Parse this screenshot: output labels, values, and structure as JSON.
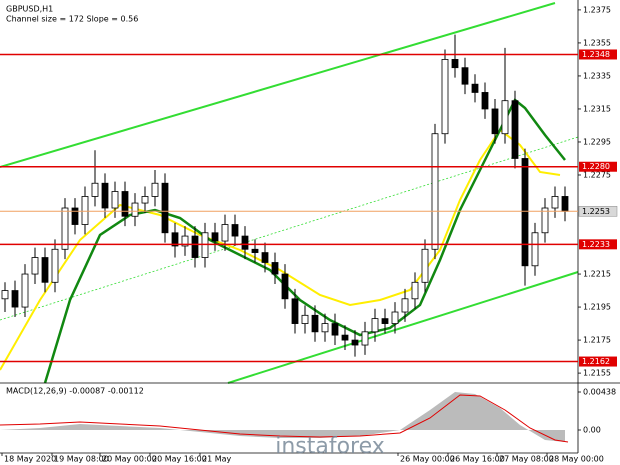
{
  "chart_data": {
    "type": "candlestick",
    "title": "GBPUSD,H1",
    "subtitle": "Channel size = 172 Slope = 0.56",
    "candles": [
      [
        1.22,
        1.221,
        1.2192,
        1.2205
      ],
      [
        1.2205,
        1.2211,
        1.2189,
        1.2195
      ],
      [
        1.2195,
        1.2221,
        1.2189,
        1.2215
      ],
      [
        1.2215,
        1.2231,
        1.2209,
        1.2225
      ],
      [
        1.2225,
        1.2231,
        1.2204,
        1.221
      ],
      [
        1.221,
        1.2236,
        1.2204,
        1.223
      ],
      [
        1.223,
        1.2261,
        1.2224,
        1.2255
      ],
      [
        1.2255,
        1.2261,
        1.2239,
        1.2245
      ],
      [
        1.2245,
        1.2268,
        1.2239,
        1.2262
      ],
      [
        1.2262,
        1.229,
        1.2256,
        1.227
      ],
      [
        1.227,
        1.2276,
        1.2249,
        1.2255
      ],
      [
        1.2255,
        1.2271,
        1.2249,
        1.2265
      ],
      [
        1.2265,
        1.2271,
        1.2244,
        1.225
      ],
      [
        1.225,
        1.2264,
        1.2244,
        1.2258
      ],
      [
        1.2258,
        1.2268,
        1.2252,
        1.2262
      ],
      [
        1.2262,
        1.2278,
        1.2256,
        1.227
      ],
      [
        1.227,
        1.2276,
        1.2234,
        1.224
      ],
      [
        1.224,
        1.2246,
        1.2225,
        1.2232
      ],
      [
        1.2232,
        1.2244,
        1.2226,
        1.2238
      ],
      [
        1.2238,
        1.2244,
        1.2219,
        1.2225
      ],
      [
        1.2225,
        1.2246,
        1.2219,
        1.224
      ],
      [
        1.224,
        1.2246,
        1.2229,
        1.2235
      ],
      [
        1.2235,
        1.2251,
        1.2229,
        1.2245
      ],
      [
        1.2245,
        1.2251,
        1.2232,
        1.2238
      ],
      [
        1.2238,
        1.2244,
        1.2224,
        1.223
      ],
      [
        1.223,
        1.2236,
        1.2222,
        1.2228
      ],
      [
        1.2228,
        1.2234,
        1.2216,
        1.2222
      ],
      [
        1.2222,
        1.2228,
        1.2209,
        1.2215
      ],
      [
        1.2215,
        1.2221,
        1.2194,
        1.22
      ],
      [
        1.22,
        1.2206,
        1.2179,
        1.2185
      ],
      [
        1.2185,
        1.2196,
        1.2179,
        1.219
      ],
      [
        1.219,
        1.2196,
        1.2174,
        1.218
      ],
      [
        1.218,
        1.2191,
        1.2174,
        1.2185
      ],
      [
        1.2185,
        1.2191,
        1.2172,
        1.2178
      ],
      [
        1.2178,
        1.2184,
        1.2169,
        1.2175
      ],
      [
        1.2175,
        1.2181,
        1.2165,
        1.2172
      ],
      [
        1.2172,
        1.2186,
        1.2166,
        1.218
      ],
      [
        1.218,
        1.2194,
        1.2174,
        1.2188
      ],
      [
        1.2188,
        1.2194,
        1.2179,
        1.2185
      ],
      [
        1.2185,
        1.2198,
        1.2179,
        1.2192
      ],
      [
        1.2192,
        1.2206,
        1.2186,
        1.22
      ],
      [
        1.22,
        1.2216,
        1.2194,
        1.221
      ],
      [
        1.221,
        1.2236,
        1.2204,
        1.223
      ],
      [
        1.223,
        1.2306,
        1.2224,
        1.23
      ],
      [
        1.23,
        1.2351,
        1.2294,
        1.2345
      ],
      [
        1.2345,
        1.236,
        1.2334,
        1.234
      ],
      [
        1.234,
        1.2346,
        1.2324,
        1.233
      ],
      [
        1.233,
        1.2336,
        1.2319,
        1.2325
      ],
      [
        1.2325,
        1.2331,
        1.2309,
        1.2315
      ],
      [
        1.2315,
        1.2321,
        1.2294,
        1.23
      ],
      [
        1.23,
        1.2352,
        1.2294,
        1.232
      ],
      [
        1.232,
        1.2326,
        1.2279,
        1.2285
      ],
      [
        1.2285,
        1.2291,
        1.2208,
        1.222
      ],
      [
        1.222,
        1.2246,
        1.2214,
        1.224
      ],
      [
        1.224,
        1.2261,
        1.2234,
        1.2255
      ],
      [
        1.2255,
        1.2268,
        1.2249,
        1.2262
      ],
      [
        1.2262,
        1.2268,
        1.2247,
        1.2253
      ]
    ],
    "color": "#000000",
    "ylim": [
      1.2149,
      1.2381
    ],
    "yticks": [
      1.2375,
      1.2355,
      1.2335,
      1.2315,
      1.2295,
      1.2275,
      1.2215,
      1.2195,
      1.2175,
      1.2155
    ],
    "levels": [
      1.2348,
      {
        "value": 1.228,
        "label": "1.2280"
      },
      1.2233,
      1.2162
    ],
    "level_color": "#e00000",
    "current_price": 1.2253,
    "x_labels": [
      "18 May 2020",
      "19 May 08:00",
      "20 May 00:00",
      "20 May 16:00",
      "21 May",
      "26 May 00:00",
      "26 May 16:00",
      "27 May 08:00",
      "28 May 00:00"
    ],
    "macd_label": "MACD(12,26,9) -0.00087 -0.00112",
    "macd_ticks": [
      0.00438,
      {
        "value": 0,
        "label": "0.00"
      }
    ],
    "watermark": "instaforex"
  }
}
